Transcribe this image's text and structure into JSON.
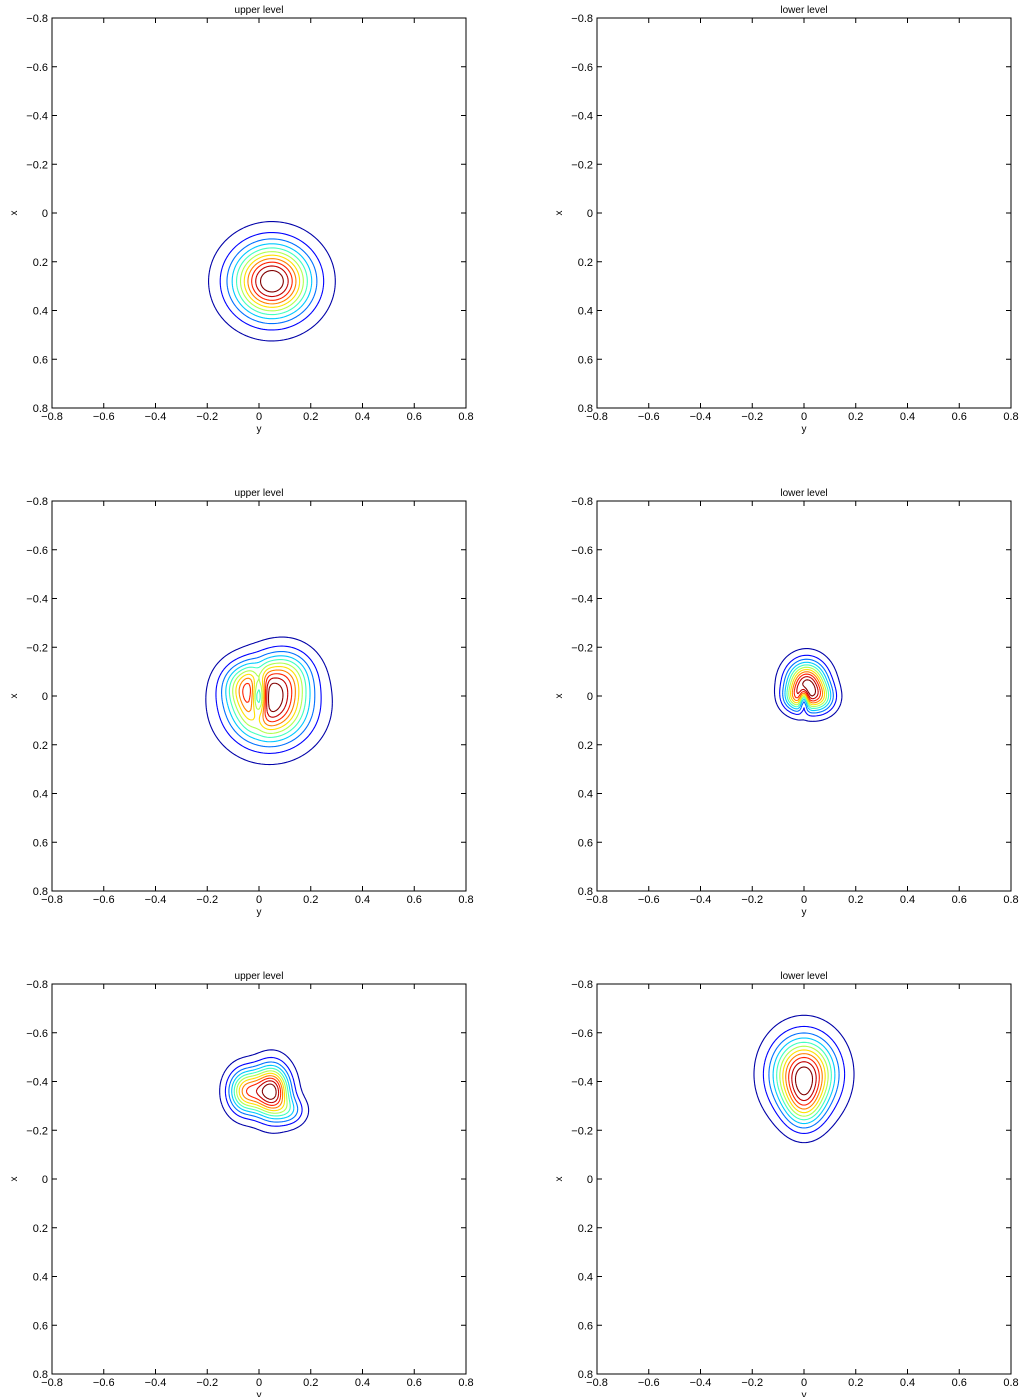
{
  "contour_colors": [
    "#0000a8",
    "#0000ff",
    "#0070ff",
    "#00c8ff",
    "#40ffbf",
    "#b0ff4f",
    "#ffe000",
    "#ff8000",
    "#ff2000",
    "#c00000",
    "#800000"
  ],
  "chart_data": [
    {
      "type": "contour",
      "title": "upper level",
      "xlabel": "y",
      "ylabel": "x",
      "xlim": [
        -0.8,
        0.8
      ],
      "ylim": [
        -0.8,
        0.8
      ],
      "y_axis_reversed": true,
      "xticks": [
        "−0.8",
        "−0.6",
        "−0.4",
        "−0.2",
        "0",
        "0.2",
        "0.4",
        "0.6",
        "0.8"
      ],
      "yticks": [
        "−0.8",
        "−0.6",
        "−0.4",
        "−0.2",
        "0",
        "0.2",
        "0.4",
        "0.6",
        "0.8"
      ],
      "levels": 11,
      "lobes": [
        {
          "y": 0.05,
          "x": 0.28,
          "w": 1.0,
          "sy": 0.1,
          "sx": 0.1
        }
      ]
    },
    {
      "type": "contour",
      "title": "lower level",
      "xlabel": "y",
      "ylabel": "x",
      "xlim": [
        -0.8,
        0.8
      ],
      "ylim": [
        -0.8,
        0.8
      ],
      "y_axis_reversed": true,
      "xticks": [
        "−0.8",
        "−0.6",
        "−0.4",
        "−0.2",
        "0",
        "0.2",
        "0.4",
        "0.6",
        "0.8"
      ],
      "yticks": [
        "−0.8",
        "−0.6",
        "−0.4",
        "−0.2",
        "0",
        "0.2",
        "0.4",
        "0.6",
        "0.8"
      ],
      "levels": 11,
      "lobes": []
    },
    {
      "type": "contour",
      "title": "upper level",
      "xlabel": "y",
      "ylabel": "x",
      "xlim": [
        -0.8,
        0.8
      ],
      "ylim": [
        -0.8,
        0.8
      ],
      "y_axis_reversed": true,
      "xticks": [
        "−0.8",
        "−0.6",
        "−0.4",
        "−0.2",
        "0",
        "0.2",
        "0.4",
        "0.6",
        "0.8"
      ],
      "yticks": [
        "−0.8",
        "−0.6",
        "−0.4",
        "−0.2",
        "0",
        "0.2",
        "0.4",
        "0.6",
        "0.8"
      ],
      "levels": 11,
      "lobes": [
        {
          "y": 0.04,
          "x": 0.04,
          "w": 1.0,
          "sy": 0.1,
          "sx": 0.1
        },
        {
          "y": -0.05,
          "x": -0.05,
          "w": 0.35,
          "sy": 0.06,
          "sx": 0.06
        },
        {
          "y": 0.1,
          "x": -0.09,
          "w": 0.4,
          "sy": 0.07,
          "sx": 0.07
        },
        {
          "y": 0.0,
          "x": 0.0,
          "w": -0.7,
          "sy": 0.02,
          "sx": 0.06
        }
      ]
    },
    {
      "type": "contour",
      "title": "lower level",
      "xlabel": "y",
      "ylabel": "x",
      "xlim": [
        -0.8,
        0.8
      ],
      "ylim": [
        -0.8,
        0.8
      ],
      "y_axis_reversed": true,
      "xticks": [
        "−0.8",
        "−0.6",
        "−0.4",
        "−0.2",
        "0",
        "0.2",
        "0.4",
        "0.6",
        "0.8"
      ],
      "yticks": [
        "−0.8",
        "−0.6",
        "−0.4",
        "−0.2",
        "0",
        "0.2",
        "0.4",
        "0.6",
        "0.8"
      ],
      "levels": 11,
      "lobes": [
        {
          "y": 0.01,
          "x": -0.05,
          "w": 1.0,
          "sy": 0.05,
          "sx": 0.06
        },
        {
          "y": -0.03,
          "x": 0.01,
          "w": 0.35,
          "sy": 0.035,
          "sx": 0.035
        },
        {
          "y": 0.06,
          "x": 0.01,
          "w": 0.4,
          "sy": 0.04,
          "sx": 0.04
        },
        {
          "y": 0.0,
          "x": 0.015,
          "w": -0.6,
          "sy": 0.012,
          "sx": 0.03
        }
      ]
    },
    {
      "type": "contour",
      "title": "upper level",
      "xlabel": "y",
      "ylabel": "x",
      "xlim": [
        -0.8,
        0.8
      ],
      "ylim": [
        -0.8,
        0.8
      ],
      "y_axis_reversed": true,
      "xticks": [
        "−0.8",
        "−0.6",
        "−0.4",
        "−0.2",
        "0",
        "0.2",
        "0.4",
        "0.6",
        "0.8"
      ],
      "yticks": [
        "−0.8",
        "−0.6",
        "−0.4",
        "−0.2",
        "0",
        "0.2",
        "0.4",
        "0.6",
        "0.8"
      ],
      "levels": 11,
      "lobes": [
        {
          "y": 0.05,
          "x": -0.36,
          "w": 1.0,
          "sy": 0.045,
          "sx": 0.07
        },
        {
          "y": -0.05,
          "x": -0.36,
          "w": 0.7,
          "sy": 0.045,
          "sx": 0.06
        },
        {
          "y": 0.12,
          "x": -0.28,
          "w": 0.25,
          "sy": 0.04,
          "sx": 0.04
        }
      ]
    },
    {
      "type": "contour",
      "title": "lower level",
      "xlabel": "y",
      "ylabel": "x",
      "xlim": [
        -0.8,
        0.8
      ],
      "ylim": [
        -0.8,
        0.8
      ],
      "y_axis_reversed": true,
      "xticks": [
        "−0.8",
        "−0.6",
        "−0.4",
        "−0.2",
        "0",
        "0.2",
        "0.4",
        "0.6",
        "0.8"
      ],
      "yticks": [
        "−0.8",
        "−0.6",
        "−0.4",
        "−0.2",
        "0",
        "0.2",
        "0.4",
        "0.6",
        "0.8"
      ],
      "levels": 11,
      "lobes": [
        {
          "y": 0.0,
          "x": -0.43,
          "w": 1.0,
          "sy": 0.08,
          "sx": 0.1
        },
        {
          "y": 0.0,
          "x": -0.3,
          "w": 0.35,
          "sy": 0.05,
          "sx": 0.07
        }
      ]
    }
  ]
}
